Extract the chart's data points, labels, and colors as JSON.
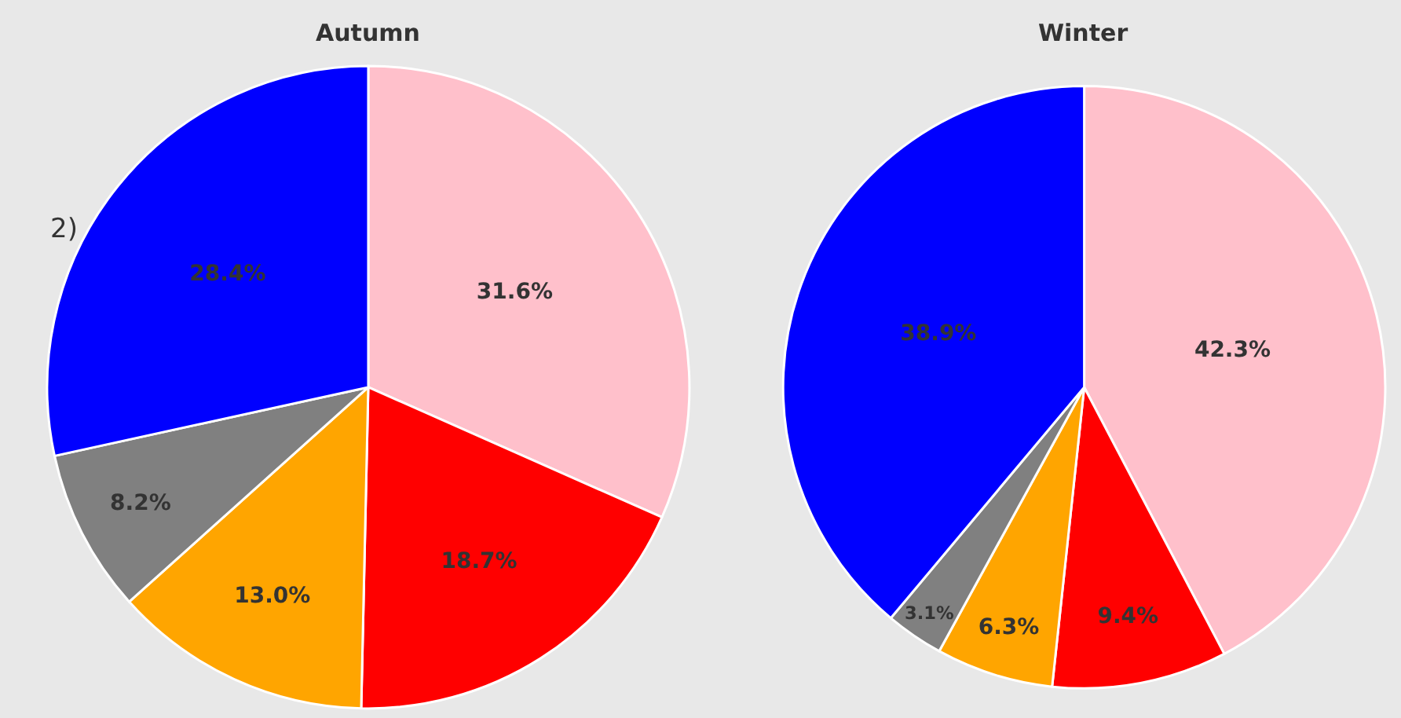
{
  "chart_data": [
    {
      "type": "pie",
      "title": "Autumn",
      "categories": [
        null,
        null,
        null,
        null,
        null
      ],
      "values": [
        31.6,
        18.7,
        13.0,
        8.2,
        28.4
      ],
      "colors": [
        "#ffc0cb",
        "#ff0000",
        "#ffa500",
        "#808080",
        "#0000ff"
      ],
      "value_labels": [
        "31.6%",
        "18.7%",
        "13.0%",
        "8.2%",
        "28.4%"
      ],
      "annotations": [
        "2)"
      ]
    },
    {
      "type": "pie",
      "title": "Winter",
      "categories": [
        null,
        null,
        null,
        null,
        null
      ],
      "values": [
        42.3,
        9.4,
        6.3,
        3.1,
        38.9
      ],
      "colors": [
        "#ffc0cb",
        "#ff0000",
        "#ffa500",
        "#808080",
        "#0000ff"
      ],
      "value_labels": [
        "42.3%",
        "9.4%",
        "6.3%",
        "3.1%",
        "38.9%"
      ]
    }
  ]
}
